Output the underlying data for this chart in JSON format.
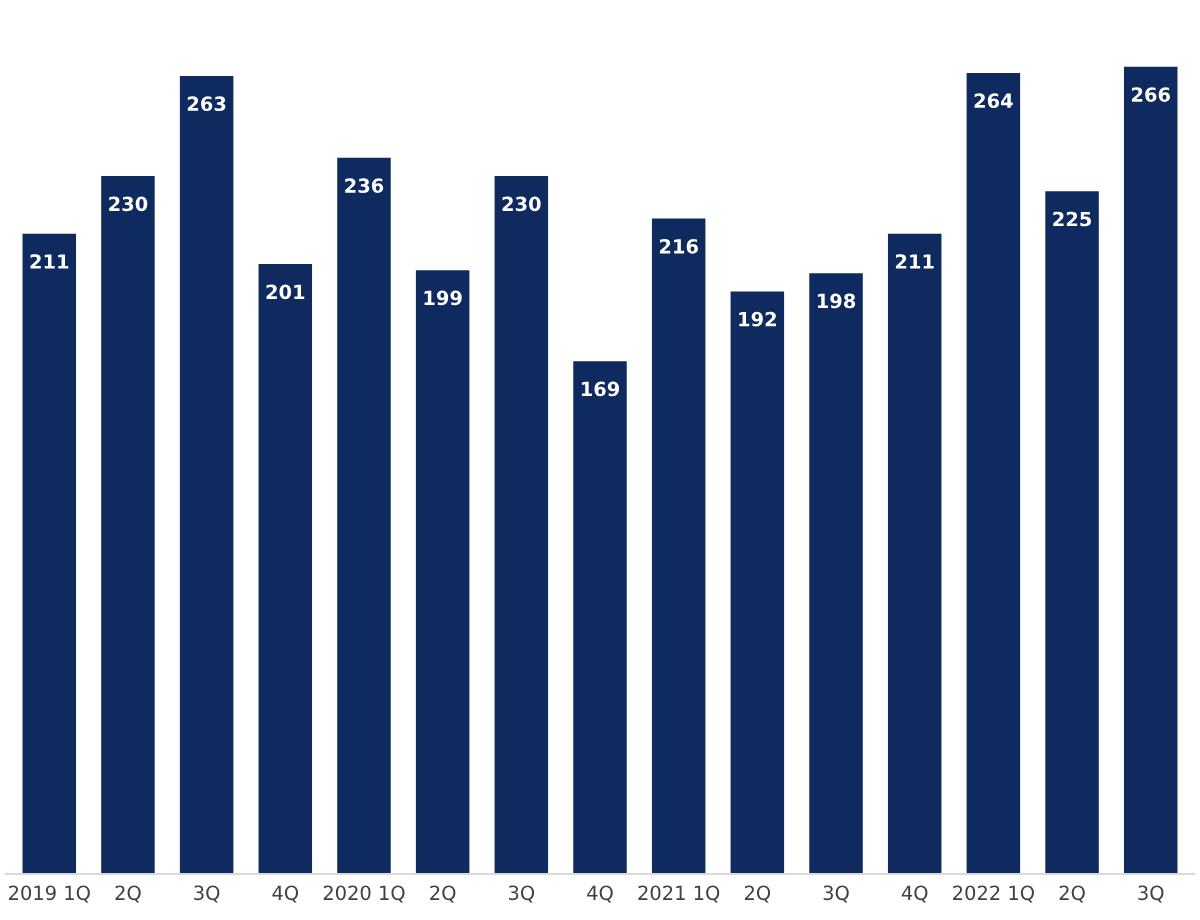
{
  "chart_data": {
    "type": "bar",
    "categories": [
      "2019 1Q",
      "2Q",
      "3Q",
      "4Q",
      "2020 1Q",
      "2Q",
      "3Q",
      "4Q",
      "2021 1Q",
      "2Q",
      "3Q",
      "4Q",
      "2022 1Q",
      "2Q",
      "3Q"
    ],
    "values": [
      211,
      230,
      263,
      201,
      236,
      199,
      230,
      169,
      216,
      192,
      198,
      211,
      264,
      225,
      266
    ],
    "color": "#0e2a5e",
    "data_labels": true,
    "grid": false,
    "legend": false
  }
}
